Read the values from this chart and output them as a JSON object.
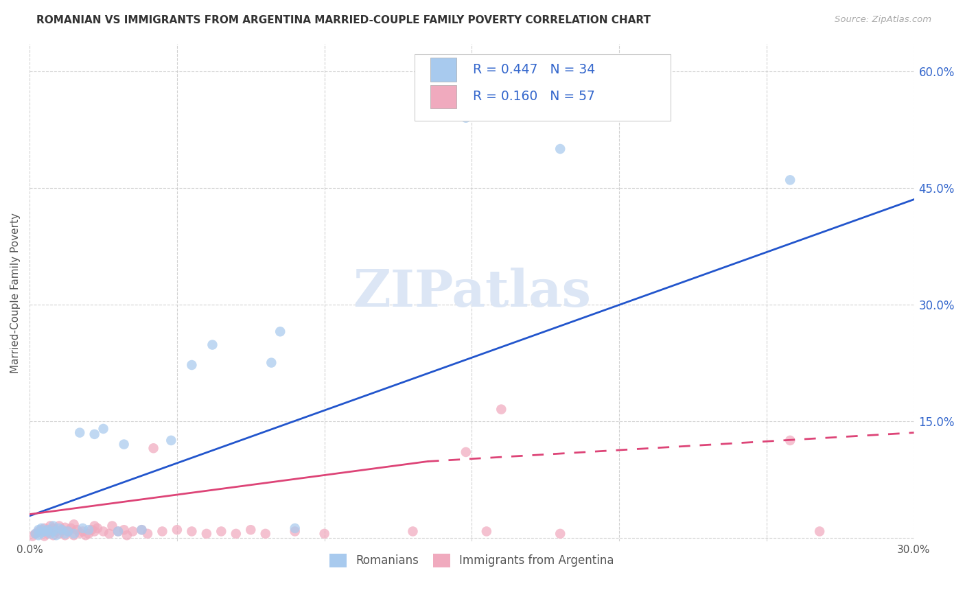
{
  "title": "ROMANIAN VS IMMIGRANTS FROM ARGENTINA MARRIED-COUPLE FAMILY POVERTY CORRELATION CHART",
  "source": "Source: ZipAtlas.com",
  "ylabel": "Married-Couple Family Poverty",
  "xlim": [
    0.0,
    0.3
  ],
  "ylim": [
    -0.005,
    0.635
  ],
  "background_color": "#ffffff",
  "grid_color": "#cccccc",
  "color_romanian": "#a8caee",
  "color_argentina": "#f0aabe",
  "color_romanian_line": "#2255cc",
  "color_argentina_line": "#dd4477",
  "color_right_ticks": "#3366cc",
  "watermark_color": "#dce6f5",
  "rom_x": [
    0.002,
    0.003,
    0.004,
    0.005,
    0.006,
    0.007,
    0.008,
    0.009,
    0.01,
    0.011,
    0.012,
    0.013,
    0.015,
    0.017,
    0.018,
    0.02,
    0.022,
    0.025,
    0.03,
    0.032,
    0.038,
    0.048,
    0.055,
    0.062,
    0.082,
    0.085,
    0.09,
    0.148,
    0.18,
    0.258,
    0.003,
    0.004,
    0.006,
    0.008
  ],
  "rom_y": [
    0.005,
    0.003,
    0.006,
    0.008,
    0.01,
    0.005,
    0.008,
    0.003,
    0.012,
    0.01,
    0.005,
    0.008,
    0.005,
    0.135,
    0.012,
    0.01,
    0.133,
    0.14,
    0.008,
    0.12,
    0.01,
    0.125,
    0.222,
    0.248,
    0.225,
    0.265,
    0.012,
    0.54,
    0.5,
    0.46,
    0.01,
    0.012,
    0.008,
    0.015
  ],
  "arg_x": [
    0.001,
    0.002,
    0.003,
    0.004,
    0.005,
    0.005,
    0.006,
    0.007,
    0.007,
    0.008,
    0.008,
    0.009,
    0.01,
    0.01,
    0.011,
    0.012,
    0.012,
    0.013,
    0.014,
    0.015,
    0.015,
    0.016,
    0.017,
    0.018,
    0.019,
    0.02,
    0.021,
    0.022,
    0.022,
    0.023,
    0.025,
    0.027,
    0.028,
    0.03,
    0.032,
    0.033,
    0.035,
    0.038,
    0.04,
    0.042,
    0.045,
    0.05,
    0.055,
    0.06,
    0.065,
    0.07,
    0.075,
    0.08,
    0.09,
    0.1,
    0.13,
    0.148,
    0.155,
    0.16,
    0.18,
    0.258,
    0.268
  ],
  "arg_y": [
    0.002,
    0.005,
    0.008,
    0.01,
    0.002,
    0.012,
    0.005,
    0.01,
    0.015,
    0.003,
    0.012,
    0.008,
    0.005,
    0.015,
    0.01,
    0.003,
    0.013,
    0.008,
    0.012,
    0.003,
    0.017,
    0.01,
    0.006,
    0.008,
    0.003,
    0.005,
    0.01,
    0.008,
    0.015,
    0.012,
    0.008,
    0.005,
    0.015,
    0.008,
    0.01,
    0.003,
    0.008,
    0.01,
    0.005,
    0.115,
    0.008,
    0.01,
    0.008,
    0.005,
    0.008,
    0.005,
    0.01,
    0.005,
    0.008,
    0.005,
    0.008,
    0.11,
    0.008,
    0.165,
    0.005,
    0.125,
    0.008
  ],
  "rom_line": [
    [
      0.0,
      0.3
    ],
    [
      0.028,
      0.435
    ]
  ],
  "arg_line_solid": [
    [
      0.0,
      0.135
    ],
    [
      0.03,
      0.098
    ]
  ],
  "arg_line_dashed": [
    [
      0.135,
      0.3
    ],
    [
      0.098,
      0.135
    ]
  ],
  "legend_R1": "0.447",
  "legend_N1": "34",
  "legend_R2": "0.160",
  "legend_N2": "57"
}
